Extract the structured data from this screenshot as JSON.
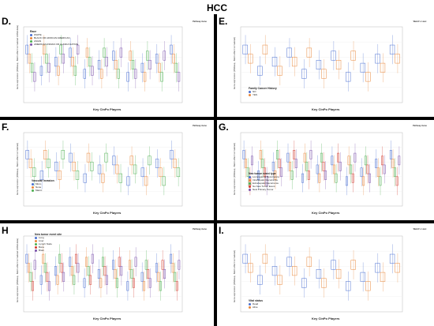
{
  "page_title": "HCC",
  "colors": {
    "black_divider": "#000000",
    "red_stat": "#d23b2f",
    "blue": "#4a6fd1",
    "orange": "#e8873a",
    "green": "#4caf50",
    "purple": "#7b52ab",
    "gray": "#9e9e9e"
  },
  "panels": [
    {
      "letter": "D.",
      "subtitle": "",
      "x_axis_title": "Key CinPo Players",
      "legend_title": "Race",
      "legend_items": [
        "WHITE",
        "BLACK OR AFRICAN AMERICAN",
        "ASIAN",
        "AMERICAN INDIAN OR ALASKA NATIVE"
      ],
      "legend_colors": [
        "#4a6fd1",
        "#e8873a",
        "#4caf50",
        "#7b52ab"
      ],
      "stats_header": "Pathway-Gene",
      "y_axis_title": "Gene expression (RNAseq - Batch effect normalized mRNA data)"
    },
    {
      "letter": "E.",
      "subtitle": "",
      "x_axis_title": "Key CinPo Players",
      "legend_title": "Family Cancer History",
      "legend_items": [
        "NO",
        "YES"
      ],
      "legend_colors": [
        "#4a6fd1",
        "#e8873a"
      ],
      "stats_header": "Welch's t-test",
      "y_axis_title": "Gene expression (RNAseq - Batch effect normalized)"
    },
    {
      "letter": "F.",
      "subtitle": "",
      "x_axis_title": "Key CinPo Players",
      "legend_title": "Vascular Invasion",
      "legend_items": [
        "Micro",
        "None",
        "Macro"
      ],
      "legend_colors": [
        "#4a6fd1",
        "#e8873a",
        "#4caf50"
      ],
      "stats_header": "Pathway-Gene",
      "y_axis_title": "Gene expression (RNAseq - Batch effect normalized)"
    },
    {
      "letter": "G.",
      "subtitle": "",
      "x_axis_title": "Key CinPo Players",
      "legend_title": "Neo tumor event type",
      "legend_items": [
        "Locoregional Recurrence",
        "Intrahepatic Recurrence",
        "Extrahepatic Recurrence",
        "No New Tumor Event",
        "New Primary Tumor"
      ],
      "legend_colors": [
        "#4a6fd1",
        "#e8873a",
        "#4caf50",
        "#d23b2f",
        "#7b52ab"
      ],
      "stats_header": "Pathway-Gene",
      "y_axis_title": "Gene expression (RNAseq - Batch effect normalized)"
    },
    {
      "letter": "H",
      "subtitle": "",
      "x_axis_title": "Key CinPo Players",
      "legend_title": "New tumor event site",
      "legend_items": [
        "Lung",
        "Liver",
        "Lymph Node",
        "Bone",
        "Brain"
      ],
      "legend_colors": [
        "#4a6fd1",
        "#e8873a",
        "#4caf50",
        "#d23b2f",
        "#7b52ab"
      ],
      "stats_header": "Pathway-Gene",
      "y_axis_title": "Gene expression (RNAseq - Batch effect normalized mRNA data)"
    },
    {
      "letter": "I.",
      "subtitle": "",
      "x_axis_title": "Key CinPo Players",
      "legend_title": "Vital status",
      "legend_items": [
        "Dead",
        "Alive"
      ],
      "legend_colors": [
        "#4a6fd1",
        "#e8873a"
      ],
      "stats_header": "Welch's t-test",
      "y_axis_title": "Gene expression (RNAseq - Batch effect normalized)"
    }
  ]
}
